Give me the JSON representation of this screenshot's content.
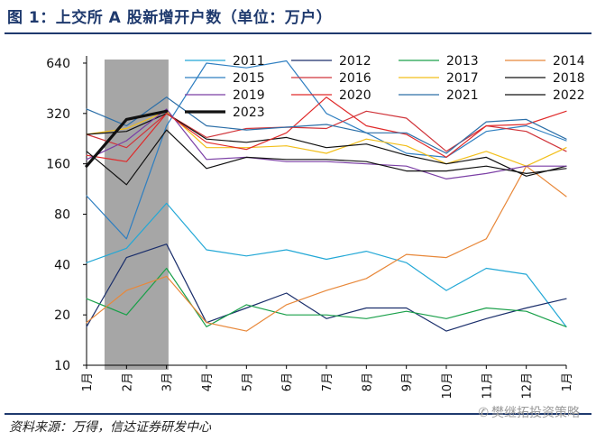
{
  "header": {
    "title": "图 1：上交所 A 股新增开户数（单位：万户）"
  },
  "footer": {
    "source": "资料来源：万得，信达证券研发中心",
    "watermark": "樊继拓投资策略",
    "watermark_icon": "wechat-icon"
  },
  "chart_data": {
    "type": "line",
    "title": "",
    "xlabel": "",
    "ylabel": "",
    "y_scale": "log2",
    "ylim": [
      10,
      800
    ],
    "y_ticks": [
      10,
      20,
      40,
      80,
      160,
      320,
      640
    ],
    "x_labels": [
      "1月",
      "2月",
      "3月",
      "4月",
      "5月",
      "6月",
      "7月",
      "8月",
      "9月",
      "10月",
      "11月",
      "12月",
      "1月"
    ],
    "shaded_region": {
      "from_label_index": 0.45,
      "to_label_index": 2.05,
      "color": "#a6a6a6"
    },
    "grid": false,
    "legend_position": "top-right",
    "series": [
      {
        "name": "2011",
        "color": "#23a8d6",
        "width": 1.2,
        "values": [
          41,
          50,
          93,
          49,
          45,
          49,
          43,
          48,
          41,
          28,
          38,
          35,
          17
        ]
      },
      {
        "name": "2012",
        "color": "#1a2e6b",
        "width": 1.2,
        "values": [
          17,
          44,
          53,
          18,
          22,
          27,
          19,
          22,
          22,
          16,
          19,
          22,
          25
        ]
      },
      {
        "name": "2013",
        "color": "#1aa04a",
        "width": 1.2,
        "values": [
          25,
          20,
          38,
          17,
          23,
          20,
          20,
          19,
          21,
          19,
          22,
          21,
          17
        ]
      },
      {
        "name": "2014",
        "color": "#e8883a",
        "width": 1.2,
        "values": [
          18,
          28,
          34,
          18,
          16,
          23,
          28,
          33,
          46,
          44,
          57,
          155,
          102
        ]
      },
      {
        "name": "2015",
        "color": "#2f7fc1",
        "width": 1.2,
        "values": [
          103,
          57,
          270,
          640,
          600,
          660,
          320,
          245,
          185,
          175,
          250,
          270,
          220
        ]
      },
      {
        "name": "2016",
        "color": "#d0343a",
        "width": 1.2,
        "values": [
          240,
          200,
          320,
          230,
          260,
          265,
          260,
          330,
          300,
          190,
          270,
          250,
          190
        ]
      },
      {
        "name": "2017",
        "color": "#f2bf1a",
        "width": 1.2,
        "values": [
          240,
          260,
          330,
          200,
          200,
          205,
          185,
          225,
          205,
          160,
          190,
          155,
          200
        ]
      },
      {
        "name": "2018",
        "color": "#111111",
        "width": 1.2,
        "values": [
          240,
          250,
          320,
          225,
          215,
          230,
          200,
          210,
          180,
          160,
          175,
          135,
          155
        ]
      },
      {
        "name": "2019",
        "color": "#7b3fa5",
        "width": 1.2,
        "values": [
          170,
          220,
          340,
          170,
          175,
          165,
          165,
          160,
          155,
          130,
          140,
          155,
          155
        ]
      },
      {
        "name": "2020",
        "color": "#e02a2a",
        "width": 1.2,
        "values": [
          180,
          165,
          320,
          215,
          195,
          245,
          400,
          270,
          240,
          175,
          270,
          275,
          330
        ]
      },
      {
        "name": "2021",
        "color": "#2c6fa8",
        "width": 1.2,
        "values": [
          340,
          270,
          400,
          270,
          255,
          265,
          275,
          245,
          245,
          185,
          285,
          295,
          225
        ]
      },
      {
        "name": "2022",
        "color": "#111111",
        "width": 1.2,
        "values": [
          190,
          120,
          255,
          150,
          175,
          170,
          170,
          165,
          145,
          145,
          155,
          140,
          150
        ]
      },
      {
        "name": "2023",
        "color": "#111111",
        "width": 3.2,
        "values": [
          155,
          295,
          330
        ]
      }
    ]
  }
}
